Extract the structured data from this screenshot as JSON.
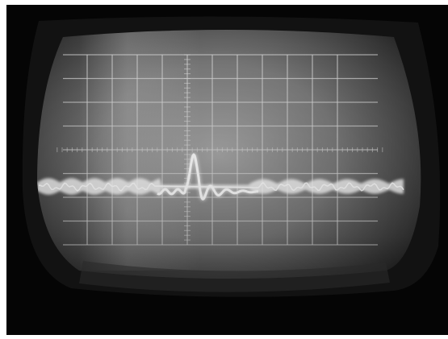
{
  "photo": {
    "subject": "oscilloscope-screen",
    "colors": {
      "background": "#050505",
      "bezel": "#141414",
      "screen_center": "#9a9a9a",
      "screen_edge": "#2a2a2a",
      "graticule": "#d8d8d8",
      "trace": "#ffffff"
    },
    "graticule": {
      "divisions_x": 10,
      "divisions_y": 8,
      "minor_ticks_per_division": 5
    },
    "trace": {
      "band_left_amplitude": 0.55,
      "band_right_amplitude": 0.5,
      "pulse_height": 1.0,
      "ringing_cycles": 4
    }
  }
}
